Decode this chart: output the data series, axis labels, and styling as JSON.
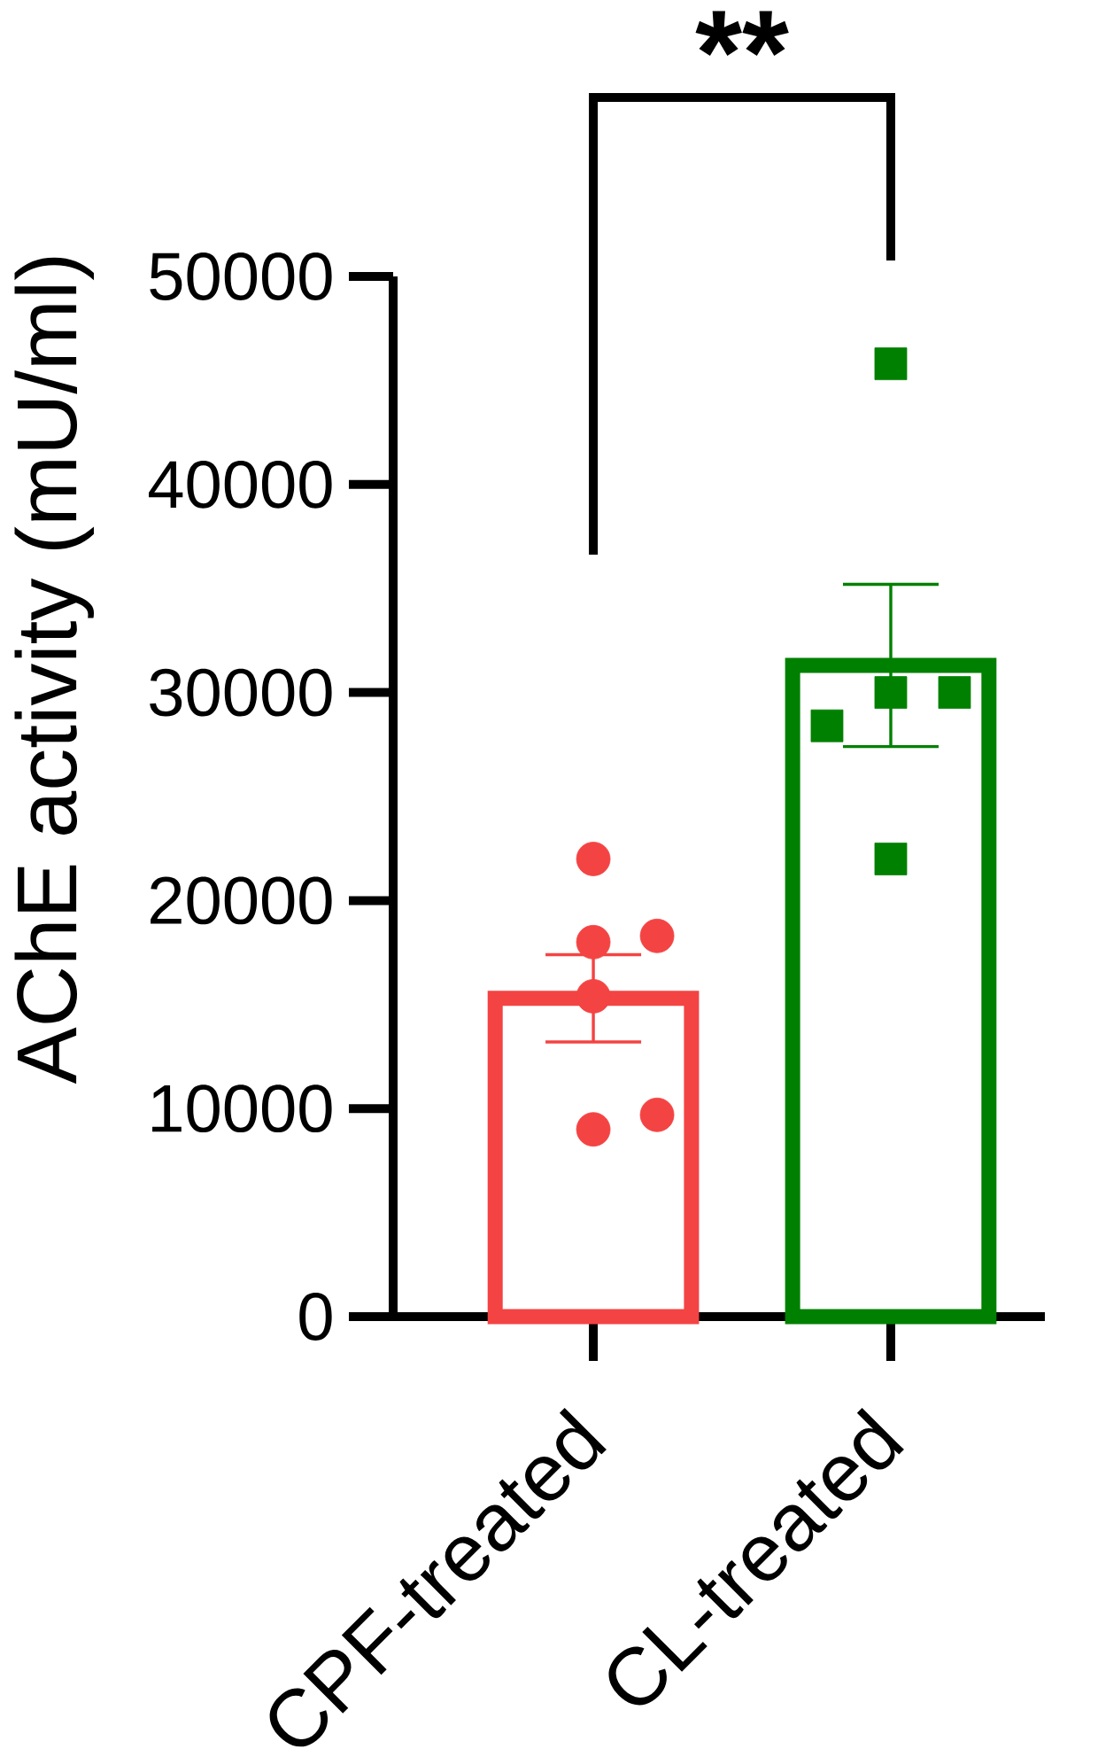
{
  "chart_data": {
    "type": "bar",
    "ylabel": "AChE activity (mU/ml)",
    "categories": [
      "CPF-treated",
      "CL-treated"
    ],
    "ylim": [
      0,
      50000
    ],
    "yticks": [
      0,
      10000,
      20000,
      30000,
      40000,
      50000
    ],
    "annotations": [
      "**"
    ],
    "series": [
      {
        "values": [
          15300,
          31300
        ],
        "errors": [
          2100,
          3900
        ],
        "colors": [
          "#f44343",
          "#008000"
        ]
      },
      {
        "type": "scatter",
        "x": [
          "CPF-treated",
          "CPF-treated",
          "CPF-treated",
          "CPF-treated",
          "CPF-treated",
          "CPF-treated"
        ],
        "values": [
          22000,
          18000,
          18300,
          15400,
          9000,
          9700
        ],
        "color": "#f44343",
        "marker": "circle"
      },
      {
        "type": "scatter",
        "x": [
          "CL-treated",
          "CL-treated",
          "CL-treated",
          "CL-treated",
          "CL-treated"
        ],
        "values": [
          45800,
          30000,
          30000,
          28400,
          22000
        ],
        "color": "#008000",
        "marker": "square"
      }
    ]
  }
}
